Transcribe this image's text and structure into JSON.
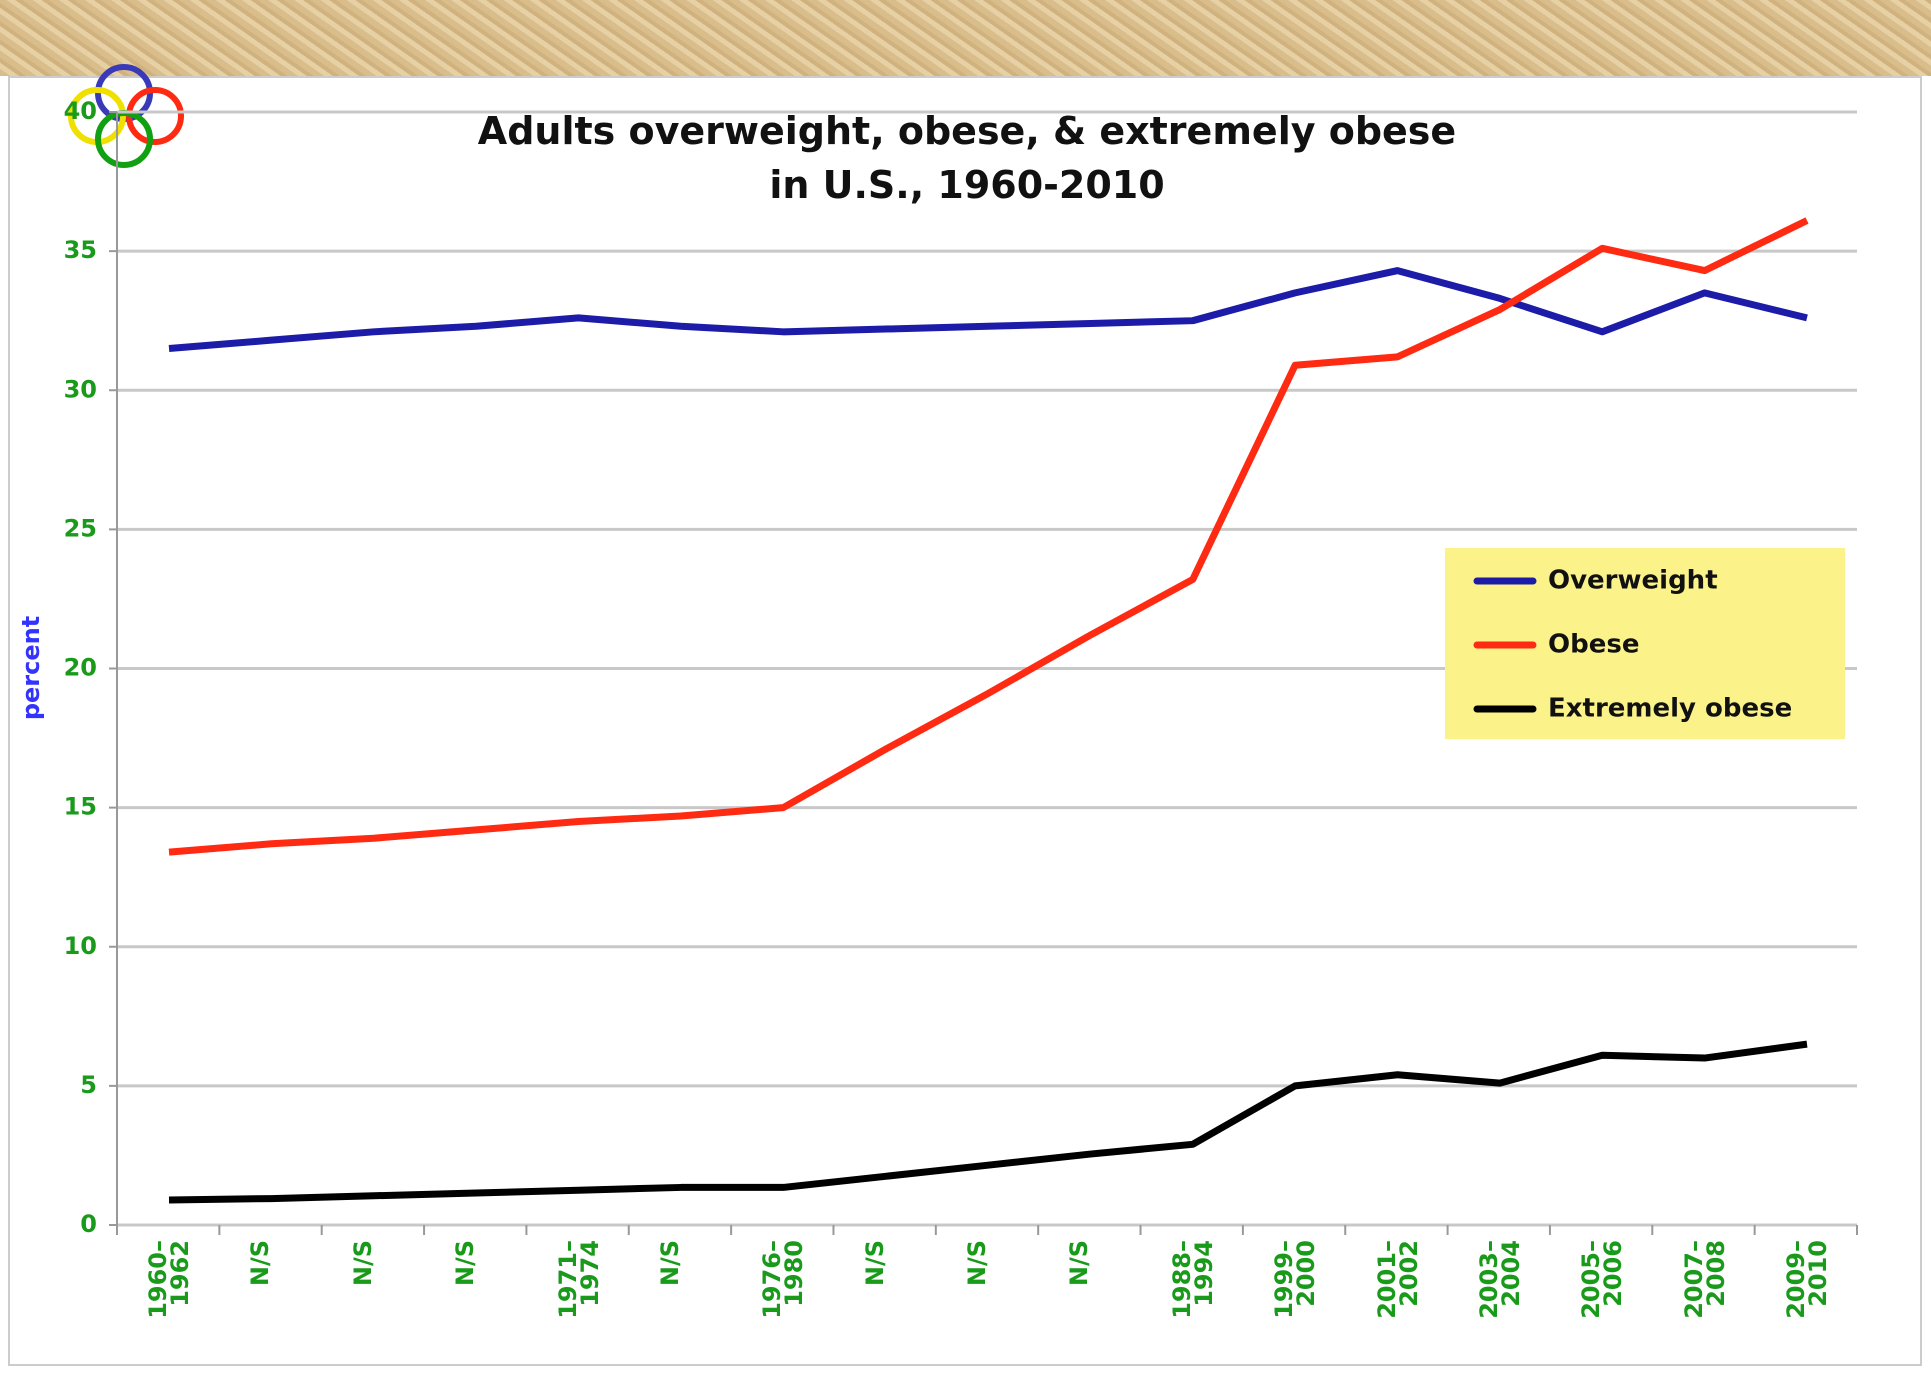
{
  "chart_data": {
    "type": "line",
    "title": "Adults overweight, obese, & extremely obese\nin U.S., 1960-2010",
    "y_label": "percent",
    "categories": [
      "1960–\n1962",
      "N/S",
      "N/S",
      "N/S",
      "1971–\n1974",
      "N/S",
      "1976–\n1980",
      "N/S",
      "N/S",
      "N/S",
      "1988–\n1994",
      "1999–\n2000",
      "2001–\n2002",
      "2003–\n2004",
      "2005–\n2006",
      "2007–\n2008",
      "2009–\n2010"
    ],
    "series": [
      {
        "name": "Overweight",
        "color": "#1c1ca8",
        "values": [
          31.5,
          31.8,
          32.1,
          32.3,
          32.6,
          32.3,
          32.1,
          32.2,
          32.3,
          32.4,
          32.5,
          33.5,
          34.3,
          33.3,
          32.1,
          33.5,
          32.6
        ]
      },
      {
        "name": "Obese",
        "color": "#ff2a12",
        "values": [
          13.4,
          13.7,
          13.9,
          14.2,
          14.5,
          14.7,
          15.0,
          17.1,
          19.1,
          21.2,
          23.2,
          30.9,
          31.2,
          32.9,
          35.1,
          34.3,
          36.1
        ]
      },
      {
        "name": "Extremely obese",
        "color": "#000000",
        "values": [
          0.9,
          0.95,
          1.05,
          1.15,
          1.25,
          1.35,
          1.35,
          1.75,
          2.15,
          2.55,
          2.9,
          5.0,
          5.4,
          5.1,
          6.1,
          6.0,
          6.5
        ]
      }
    ],
    "ylim": [
      0,
      40
    ],
    "yticks": [
      0,
      5,
      10,
      15,
      20,
      25,
      30,
      35,
      40
    ],
    "grid": true,
    "legend": "right"
  }
}
